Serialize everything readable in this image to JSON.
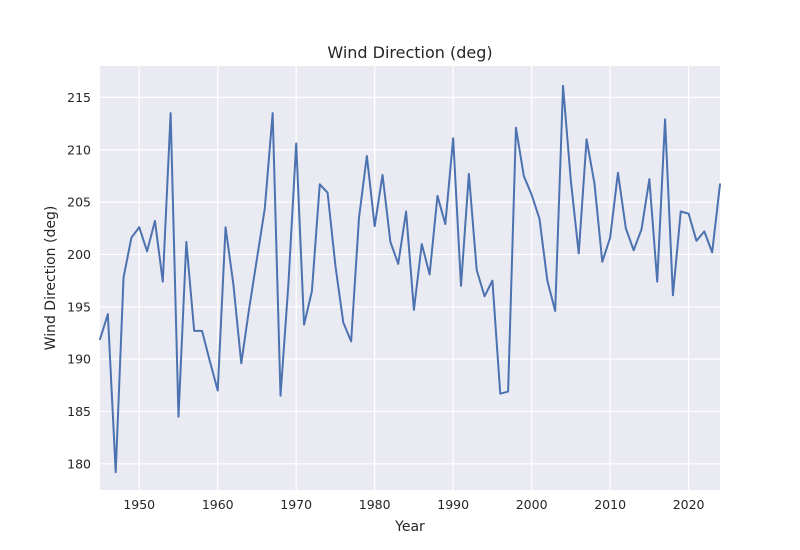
{
  "chart_data": {
    "type": "line",
    "title": "Wind Direction (deg)",
    "xlabel": "Year",
    "ylabel": "Wind Direction (deg)",
    "xlim": [
      1945,
      2024
    ],
    "ylim": [
      177.5,
      218
    ],
    "xticks": [
      1950,
      1960,
      1970,
      1980,
      1990,
      2000,
      2010,
      2020
    ],
    "yticks": [
      180,
      185,
      190,
      195,
      200,
      205,
      210,
      215
    ],
    "grid": true,
    "line_color": "#4c72b0",
    "background_color": "#eaeaf2",
    "series": [
      {
        "x": [
          1945,
          1946,
          1947,
          1948,
          1949,
          1950,
          1951,
          1952,
          1953,
          1954,
          1955,
          1956,
          1957,
          1958,
          1959,
          1960,
          1961,
          1962,
          1963,
          1964,
          1965,
          1966,
          1967,
          1968,
          1969,
          1970,
          1971,
          1972,
          1973,
          1974,
          1975,
          1976,
          1977,
          1978,
          1979,
          1980,
          1981,
          1982,
          1983,
          1984,
          1985,
          1986,
          1987,
          1988,
          1989,
          1990,
          1991,
          1992,
          1993,
          1994,
          1995,
          1996,
          1997,
          1998,
          1999,
          2000,
          2001,
          2002,
          2003,
          2004,
          2005,
          2006,
          2007,
          2008,
          2009,
          2010,
          2011,
          2012,
          2013,
          2014,
          2015,
          2016,
          2017,
          2018,
          2019,
          2020,
          2021,
          2022,
          2023,
          2024
        ],
        "y": [
          191.9,
          194.3,
          179.2,
          197.8,
          201.6,
          202.6,
          200.3,
          203.2,
          197.4,
          213.5,
          184.5,
          201.2,
          192.7,
          192.7,
          189.8,
          187.0,
          202.6,
          197.1,
          189.6,
          194.8,
          199.6,
          204.4,
          213.5,
          186.5,
          197.1,
          210.6,
          193.3,
          196.5,
          206.7,
          205.9,
          198.9,
          193.5,
          191.7,
          203.5,
          209.4,
          202.7,
          207.6,
          201.2,
          199.1,
          204.1,
          194.7,
          201.0,
          198.1,
          205.6,
          202.9,
          211.1,
          197.0,
          207.7,
          198.5,
          196.0,
          197.5,
          186.7,
          186.9,
          212.1,
          207.5,
          205.7,
          203.4,
          197.5,
          194.6,
          216.1,
          207.0,
          200.1,
          211.0,
          206.8,
          199.3,
          201.6,
          207.8,
          202.5,
          200.4,
          202.4,
          207.2,
          197.4,
          212.9,
          196.1,
          204.1,
          203.9,
          201.3,
          202.2,
          200.2,
          206.7
        ]
      }
    ]
  }
}
